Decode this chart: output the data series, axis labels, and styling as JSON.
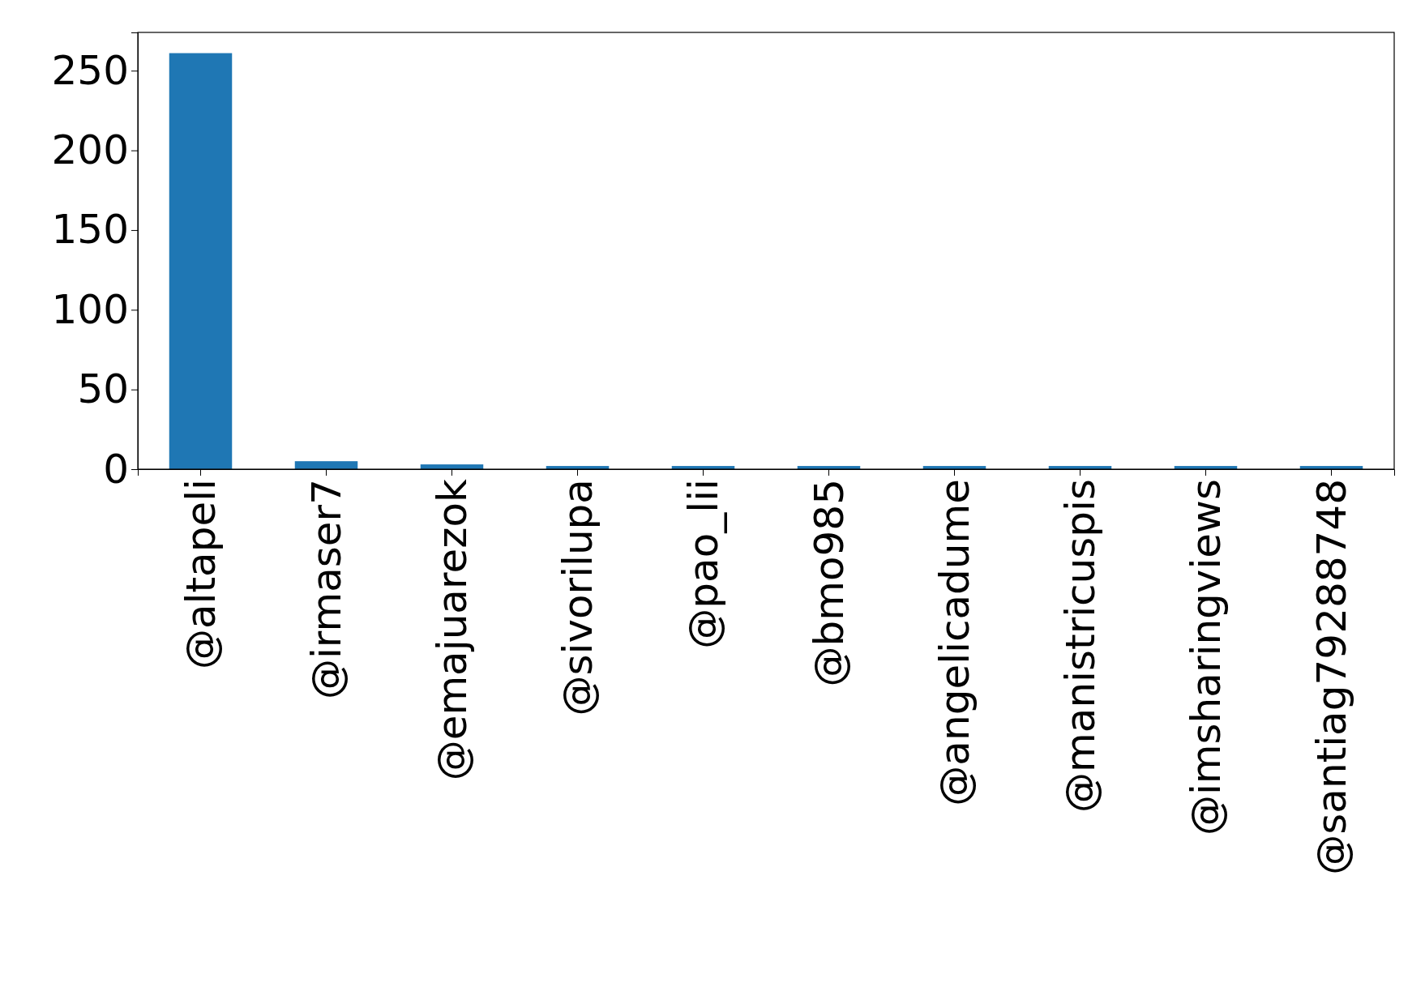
{
  "chart_data": {
    "type": "bar",
    "categories": [
      "@altapeli",
      "@irmaser7",
      "@emajuarezok",
      "@sivorilupa",
      "@pao_lii",
      "@bmo985",
      "@angelicadume",
      "@manistricuspis",
      "@imsharingviews",
      "@santiag79288748"
    ],
    "values": [
      261,
      5,
      3,
      2,
      2,
      2,
      2,
      2,
      2,
      2
    ],
    "color": "#1f77b4",
    "ylim": [
      0,
      274
    ],
    "yticks": [
      0,
      50,
      100,
      150,
      200,
      250
    ]
  }
}
